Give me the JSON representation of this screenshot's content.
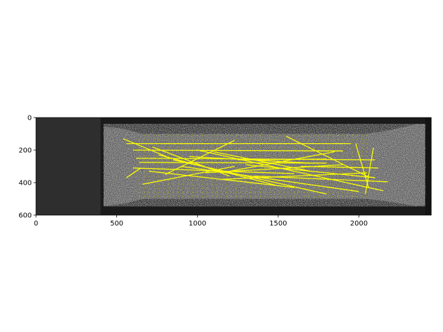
{
  "chart_data": {
    "type": "scatter",
    "title": "",
    "xlabel": "",
    "ylabel": "",
    "xlim": [
      0,
      2448
    ],
    "ylim": [
      600,
      0
    ],
    "y_axis_inverted": true,
    "grid": false,
    "background": "grayscale speckle-pattern image of a tensile test specimen",
    "x_ticks": [
      0,
      500,
      1000,
      1500,
      2000
    ],
    "y_ticks": [
      0,
      200,
      400,
      600
    ],
    "specimen": {
      "outer_x": [
        420,
        2410
      ],
      "gauge_x": [
        630,
        2070
      ],
      "gauge_y": [
        100,
        500
      ]
    },
    "marker_grid": {
      "color": "#9a9a20",
      "x_start": 640,
      "x_end": 2060,
      "x_step": 30,
      "y_start": 110,
      "y_end": 490,
      "y_step": 25
    },
    "line_color": "#ffff00",
    "lines": [
      [
        540,
        130,
        820,
        245
      ],
      [
        560,
        160,
        1950,
        160
      ],
      [
        600,
        200,
        1900,
        205
      ],
      [
        620,
        250,
        2100,
        260
      ],
      [
        640,
        275,
        1800,
        280
      ],
      [
        600,
        310,
        1600,
        345
      ],
      [
        560,
        370,
        650,
        310
      ],
      [
        660,
        410,
        1230,
        300
      ],
      [
        700,
        330,
        1600,
        430
      ],
      [
        720,
        180,
        1200,
        360
      ],
      [
        760,
        230,
        1500,
        420
      ],
      [
        800,
        350,
        1230,
        140
      ],
      [
        850,
        260,
        1800,
        470
      ],
      [
        900,
        300,
        2000,
        455
      ],
      [
        950,
        240,
        1700,
        280
      ],
      [
        1000,
        200,
        2150,
        450
      ],
      [
        1050,
        340,
        1900,
        290
      ],
      [
        1100,
        210,
        1700,
        330
      ],
      [
        1150,
        380,
        2050,
        340
      ],
      [
        1200,
        330,
        1850,
        210
      ],
      [
        1300,
        290,
        2100,
        370
      ],
      [
        1350,
        360,
        2180,
        395
      ],
      [
        1550,
        115,
        2060,
        365
      ],
      [
        1980,
        160,
        2060,
        430
      ],
      [
        2040,
        470,
        2090,
        185
      ],
      [
        1640,
        300,
        2120,
        310
      ],
      [
        1250,
        260,
        1800,
        255
      ]
    ]
  }
}
